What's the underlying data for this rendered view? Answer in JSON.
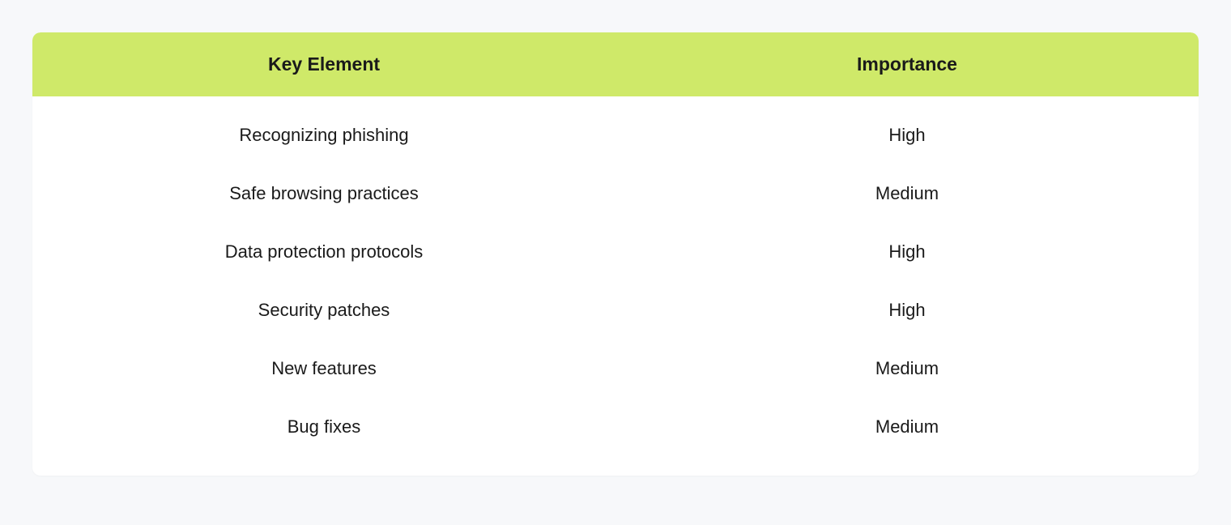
{
  "table": {
    "type": "table",
    "columns": [
      "Key Element",
      "Importance"
    ],
    "rows": [
      [
        "Recognizing phishing",
        "High"
      ],
      [
        "Safe browsing practices",
        "Medium"
      ],
      [
        "Data protection protocols",
        "High"
      ],
      [
        "Security patches",
        "High"
      ],
      [
        "New features",
        "Medium"
      ],
      [
        "Bug fixes",
        "Medium"
      ]
    ],
    "header_background_color": "#cfe969",
    "header_text_color": "#1a1a1a",
    "header_fontsize": 23,
    "header_fontweight": 700,
    "body_background_color": "#ffffff",
    "body_text_color": "#1a1a1a",
    "body_fontsize": 22,
    "body_fontweight": 400,
    "page_background_color": "#f7f8fa",
    "border_radius": 10,
    "column_alignment": [
      "center",
      "center"
    ]
  }
}
